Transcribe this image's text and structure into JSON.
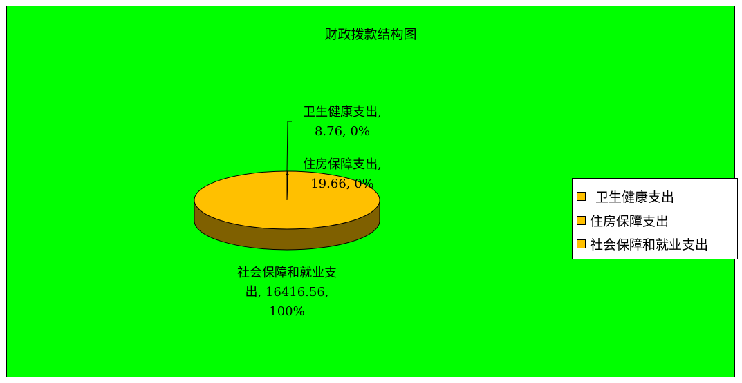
{
  "chart_data": {
    "type": "pie",
    "title": "财政拨款结构图",
    "categories": [
      "卫生健康支出",
      "住房保障支出",
      "社会保障和就业支出"
    ],
    "values": [
      8.76,
      19.66,
      16416.56
    ],
    "percents": [
      "0%",
      "0%",
      "100%"
    ],
    "data_labels": [
      [
        "卫生健康支出,",
        "8.76, 0%"
      ],
      [
        "住房保障支出,",
        "19.66, 0%"
      ],
      [
        "社会保障和就业支",
        "出, 16416.56,",
        "100%"
      ]
    ],
    "legend": {
      "placement": "right",
      "entries": [
        "卫生健康支出",
        "住房保障支出",
        "社会保障和就业支出"
      ]
    },
    "colors": {
      "background": "#00ff00",
      "slice_top": "#ffc000",
      "slice_side": "#7f6000",
      "legend_swatch": "#ffc000",
      "outline": "#000000"
    },
    "style": "3d-pie"
  }
}
